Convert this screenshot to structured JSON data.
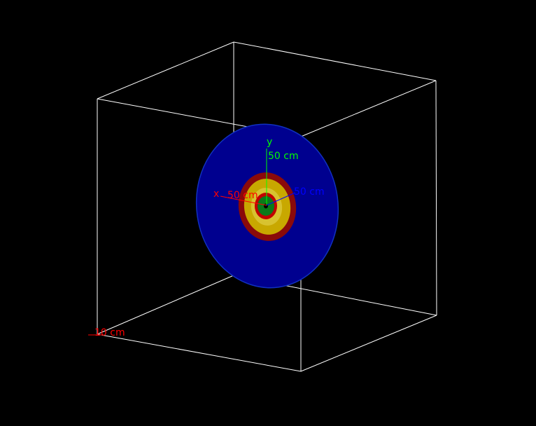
{
  "scene": {
    "background": "#000000",
    "box_color": "#ffffff",
    "colors": {
      "outer_disk": "#00008f",
      "outer_disk_edge": "#1030c0",
      "red_ring": "#8a0a0a",
      "yellow_ring": "#c8a800",
      "yellow_ring_light": "#d8c230",
      "inner_red": "#c00000",
      "green_core": "#0a7a1a",
      "x_axis": "#ff0000",
      "y_axis": "#00ff00",
      "z_axis": "#0000ff"
    }
  },
  "axes": {
    "x_label": "x",
    "y_label": "y",
    "x_scale": "50 cm",
    "y_scale": "50 cm",
    "z_scale": "50 cm"
  },
  "scale_marker": {
    "label": "10 cm"
  }
}
